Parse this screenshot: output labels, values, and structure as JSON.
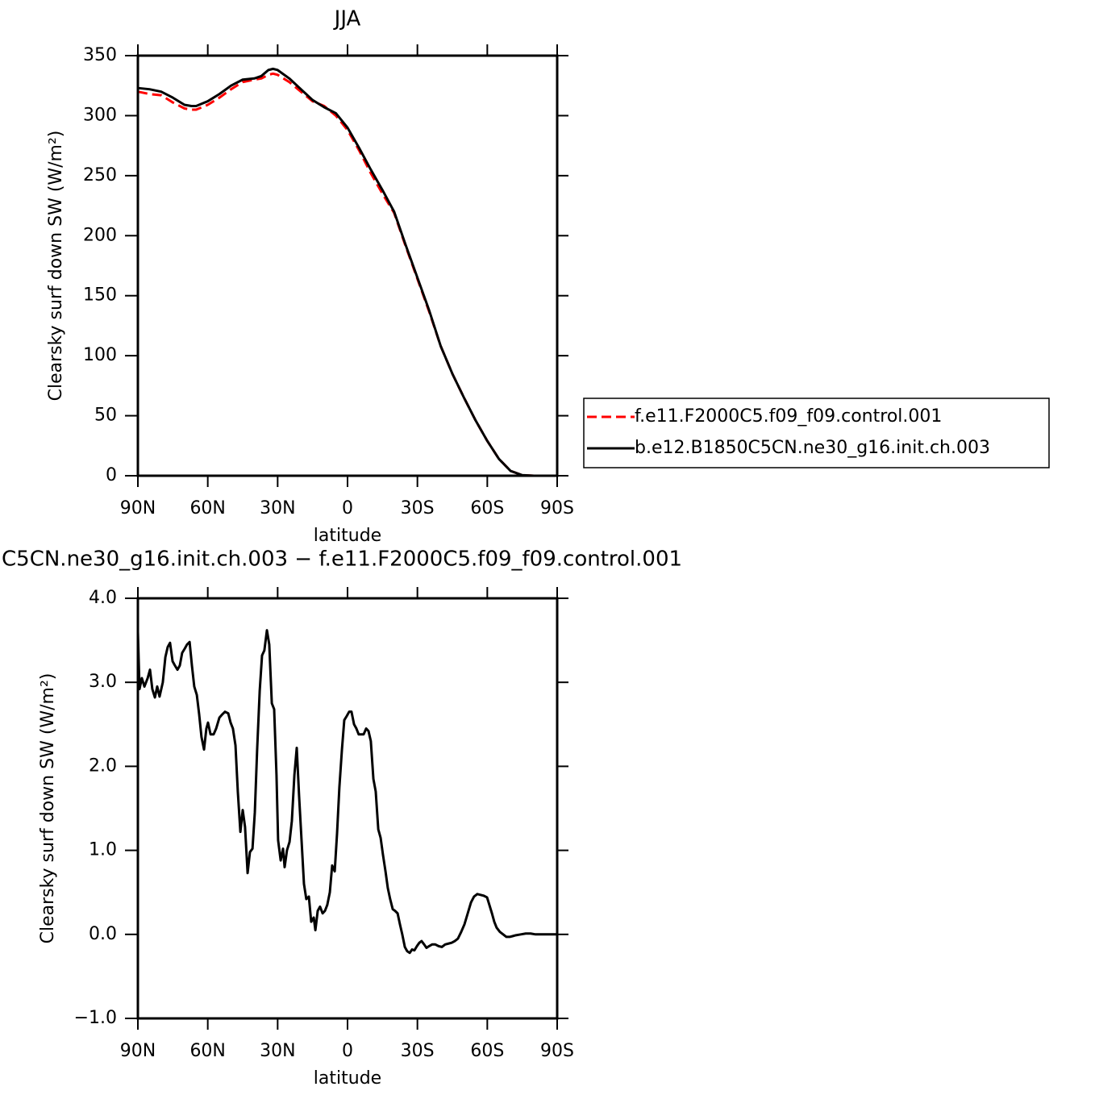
{
  "chart_data": [
    {
      "type": "line",
      "title": "JJA",
      "xlabel": "latitude",
      "ylabel": "Clearsky surf down SW (W/m²)",
      "xlim": [
        90,
        -90
      ],
      "ylim": [
        0,
        350
      ],
      "xticks": [
        {
          "value": 90,
          "label": "90N"
        },
        {
          "value": 60,
          "label": "60N"
        },
        {
          "value": 30,
          "label": "30N"
        },
        0,
        {
          "value": -30,
          "label": "30S"
        },
        {
          "value": -60,
          "label": "60S"
        },
        {
          "value": -90,
          "label": "90S"
        }
      ],
      "yticks": [
        0,
        50,
        100,
        150,
        200,
        250,
        300,
        350
      ],
      "legend": "right",
      "x": [
        90,
        85,
        80,
        75,
        70,
        67,
        65,
        60,
        55,
        50,
        45,
        40,
        37,
        34,
        32,
        30,
        25,
        20,
        15,
        10,
        5,
        0,
        -5,
        -10,
        -15,
        -20,
        -25,
        -30,
        -35,
        -40,
        -45,
        -50,
        -55,
        -60,
        -65,
        -70,
        -75,
        -80,
        -85,
        -90
      ],
      "series": [
        {
          "name": "f.e11.F2000C5.f09_f09.control.001",
          "color": "#ff0000",
          "dashed": true,
          "values": [
            320,
            318,
            317,
            311,
            306,
            305,
            305,
            309,
            315,
            322,
            328,
            330,
            331,
            334,
            335,
            334,
            328,
            320,
            312,
            308,
            300,
            288,
            271,
            252,
            235,
            219,
            191,
            164,
            137,
            108,
            85,
            65,
            46,
            29,
            14,
            4,
            0.5,
            0,
            0,
            0
          ]
        },
        {
          "name": "b.e12.B1850C5CN.ne30_g16.init.ch.003",
          "color": "#000000",
          "dashed": false,
          "values": [
            323,
            322,
            320,
            315,
            309,
            308,
            308,
            312,
            318,
            325,
            330,
            331,
            333,
            338,
            339,
            338,
            331,
            322,
            313,
            307,
            302,
            290,
            273,
            255,
            238,
            220,
            192,
            165,
            138,
            108,
            85,
            65,
            46,
            29,
            14,
            4,
            0.5,
            0,
            0,
            0
          ]
        }
      ]
    },
    {
      "type": "line",
      "title": "C5CN.ne30_g16.init.ch.003 − f.e11.F2000C5.f09_f09.control.001",
      "xlabel": "latitude",
      "ylabel": "Clearsky surf down SW (W/m²)",
      "xlim": [
        90,
        -90
      ],
      "ylim": [
        -1,
        4
      ],
      "xticks": [
        {
          "value": 90,
          "label": "90N"
        },
        {
          "value": 60,
          "label": "60N"
        },
        {
          "value": 30,
          "label": "30N"
        },
        0,
        {
          "value": -30,
          "label": "30S"
        },
        {
          "value": -60,
          "label": "60S"
        },
        {
          "value": -90,
          "label": "90S"
        }
      ],
      "yticks": [
        {
          "value": -1,
          "label": "−1.0"
        },
        {
          "value": 0,
          "label": "0.0"
        },
        {
          "value": 1,
          "label": "1.0"
        },
        {
          "value": 2,
          "label": "2.0"
        },
        {
          "value": 3,
          "label": "3.0"
        },
        {
          "value": 4,
          "label": "4.0"
        }
      ],
      "x": [
        90,
        89.3,
        88.3,
        87.2,
        85.8,
        84.8,
        83.8,
        82.7,
        81.7,
        80.7,
        79.3,
        78.2,
        77.2,
        76.2,
        75.1,
        74.1,
        73,
        72,
        71,
        69.9,
        68.9,
        67.8,
        66.8,
        65.8,
        64.7,
        63.7,
        62.7,
        61.6,
        60.6,
        59.9,
        58.8,
        57.5,
        56.4,
        55,
        53.7,
        52.6,
        51.2,
        50.2,
        49.2,
        48.1,
        47.1,
        46,
        45,
        44,
        42.9,
        41.9,
        40.8,
        39.8,
        38.8,
        37.7,
        36.7,
        35.7,
        34.6,
        33.6,
        32.5,
        31.5,
        30.5,
        29.8,
        28.7,
        27.7,
        27,
        26,
        24.9,
        23.9,
        22.8,
        21.8,
        20.8,
        19.7,
        18.7,
        17.7,
        16.6,
        15.6,
        14.5,
        13.8,
        12.8,
        11.8,
        10.7,
        9.7,
        8.7,
        7.6,
        6.6,
        5.5,
        4.5,
        3.5,
        2.4,
        1.4,
        0.3,
        -0.7,
        -1.7,
        -2.8,
        -3.8,
        -4.8,
        -5.9,
        -6.9,
        -8,
        -9,
        -10,
        -11.1,
        -12.1,
        -13.2,
        -14.2,
        -15.2,
        -16.3,
        -17.3,
        -18.3,
        -19.4,
        -20.4,
        -21.5,
        -22.5,
        -23.5,
        -24.6,
        -25.6,
        -26.7,
        -27.7,
        -28.7,
        -29.8,
        -30.8,
        -31.8,
        -32.9,
        -33.9,
        -35,
        -36.3,
        -37.7,
        -39.1,
        -40.5,
        -41.9,
        -43.3,
        -44.7,
        -46,
        -47.4,
        -48.8,
        -50.2,
        -51.6,
        -53,
        -54.3,
        -55.7,
        -57.1,
        -58.5,
        -59.9,
        -60.9,
        -62,
        -63,
        -64,
        -65.4,
        -66.8,
        -68.2,
        -69.6,
        -71,
        -72.3,
        -74.4,
        -76.5,
        -78.6,
        -80.7,
        -90
      ],
      "series": [
        {
          "color": "#000000",
          "values": [
            3.6,
            2.92,
            3.05,
            2.95,
            3.05,
            3.15,
            2.92,
            2.82,
            2.95,
            2.83,
            3.0,
            3.3,
            3.42,
            3.47,
            3.25,
            3.2,
            3.15,
            3.2,
            3.35,
            3.4,
            3.45,
            3.48,
            3.2,
            2.95,
            2.85,
            2.62,
            2.35,
            2.2,
            2.45,
            2.52,
            2.38,
            2.38,
            2.45,
            2.58,
            2.62,
            2.65,
            2.63,
            2.52,
            2.45,
            2.25,
            1.7,
            1.22,
            1.48,
            1.28,
            0.73,
            0.98,
            1.02,
            1.45,
            2.2,
            2.9,
            3.32,
            3.38,
            3.62,
            3.45,
            2.75,
            2.68,
            1.9,
            1.12,
            0.88,
            1.02,
            0.8,
            1.0,
            1.1,
            1.35,
            1.9,
            2.22,
            1.65,
            1.1,
            0.6,
            0.42,
            0.45,
            0.15,
            0.2,
            0.05,
            0.28,
            0.33,
            0.25,
            0.28,
            0.35,
            0.5,
            0.82,
            0.75,
            1.2,
            1.75,
            2.2,
            2.55,
            2.6,
            2.65,
            2.65,
            2.5,
            2.45,
            2.38,
            2.38,
            2.38,
            2.45,
            2.42,
            2.3,
            1.85,
            1.7,
            1.25,
            1.15,
            0.95,
            0.75,
            0.55,
            0.42,
            0.3,
            0.28,
            0.25,
            0.12,
            0.0,
            -0.15,
            -0.2,
            -0.22,
            -0.18,
            -0.19,
            -0.14,
            -0.1,
            -0.08,
            -0.12,
            -0.16,
            -0.14,
            -0.12,
            -0.12,
            -0.14,
            -0.15,
            -0.12,
            -0.11,
            -0.1,
            -0.08,
            -0.05,
            0.03,
            0.12,
            0.25,
            0.38,
            0.45,
            0.48,
            0.47,
            0.46,
            0.44,
            0.35,
            0.25,
            0.15,
            0.08,
            0.03,
            0.0,
            -0.03,
            -0.03,
            -0.02,
            -0.01,
            0.0,
            0.01,
            0.01,
            0.0,
            0.0
          ]
        }
      ]
    }
  ]
}
